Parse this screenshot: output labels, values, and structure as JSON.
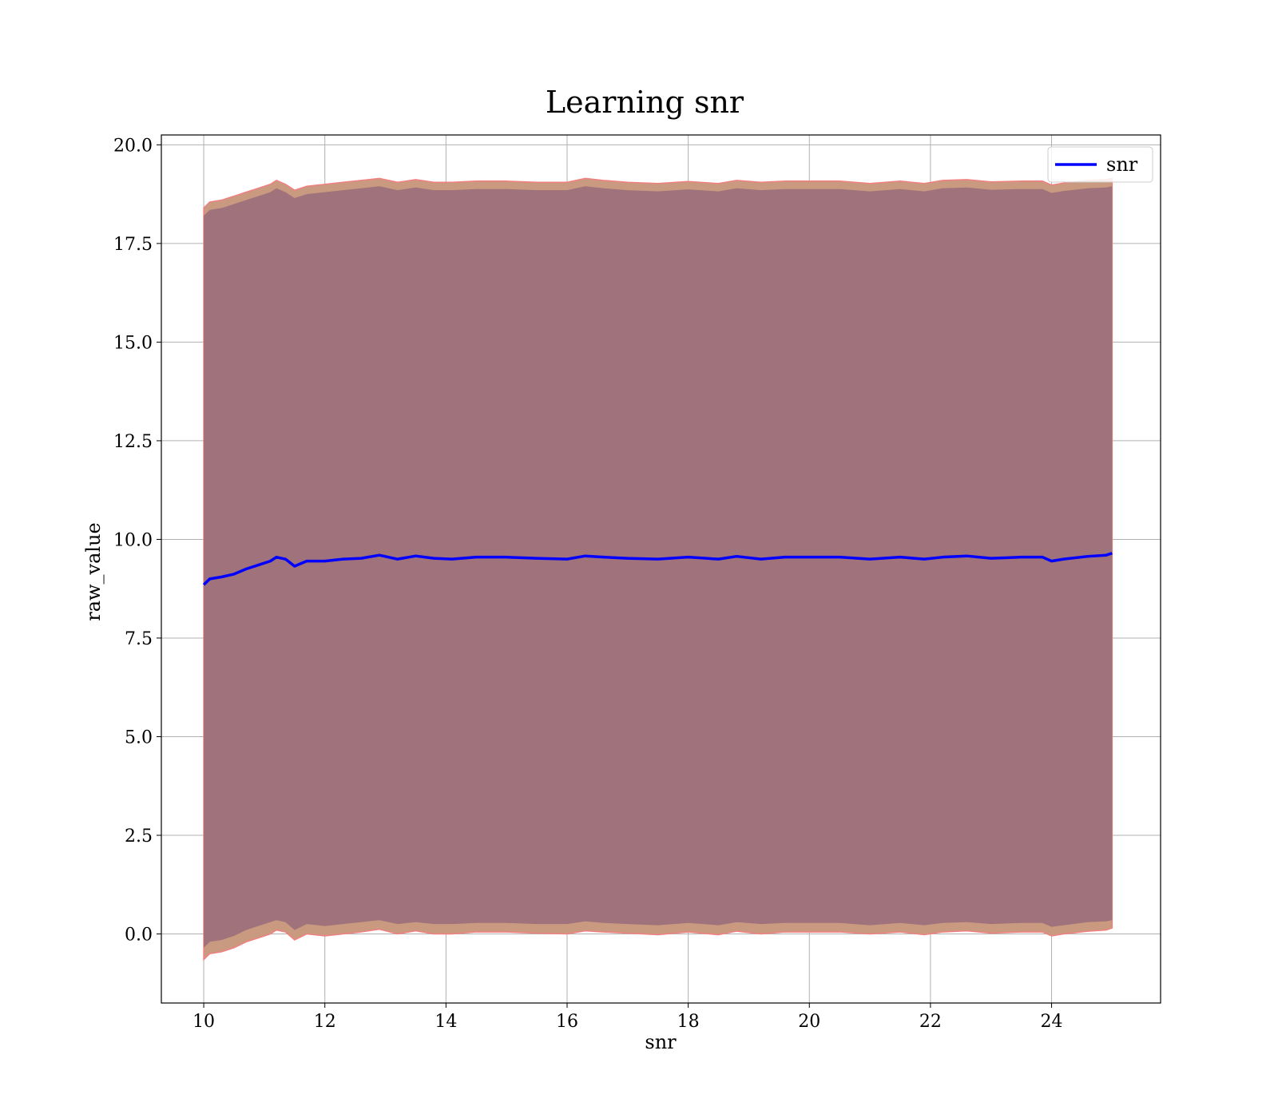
{
  "chart_data": {
    "type": "line",
    "title": "Learning snr",
    "xlabel": "snr",
    "ylabel": "raw_value",
    "xlim": [
      9.3,
      25.8
    ],
    "ylim": [
      -1.75,
      20.25
    ],
    "xticks": [
      10,
      12,
      14,
      16,
      18,
      20,
      22,
      24
    ],
    "yticks": [
      0.0,
      2.5,
      5.0,
      7.5,
      10.0,
      12.5,
      15.0,
      17.5,
      20.0
    ],
    "grid": true,
    "legend_position": "top-right",
    "colors": {
      "line": "#0000ff",
      "band_inner": "#a0727b",
      "band_outer": "#c99a80",
      "band_edge": "#f08080",
      "grid": "#b0b0b0"
    },
    "series": [
      {
        "name": "snr",
        "x": [
          10.0,
          10.1,
          10.3,
          10.5,
          10.7,
          10.9,
          11.1,
          11.2,
          11.35,
          11.5,
          11.7,
          12.0,
          12.3,
          12.6,
          12.9,
          13.2,
          13.5,
          13.8,
          14.1,
          14.5,
          15.0,
          15.5,
          16.0,
          16.3,
          16.6,
          17.0,
          17.5,
          18.0,
          18.5,
          18.8,
          19.2,
          19.6,
          20.0,
          20.5,
          21.0,
          21.5,
          21.9,
          22.2,
          22.6,
          23.0,
          23.5,
          23.85,
          24.0,
          24.2,
          24.6,
          24.9,
          25.0
        ],
        "y": [
          8.85,
          9.0,
          9.05,
          9.12,
          9.25,
          9.35,
          9.45,
          9.55,
          9.5,
          9.32,
          9.45,
          9.45,
          9.5,
          9.52,
          9.6,
          9.5,
          9.58,
          9.52,
          9.5,
          9.55,
          9.55,
          9.52,
          9.5,
          9.58,
          9.55,
          9.52,
          9.5,
          9.55,
          9.5,
          9.57,
          9.5,
          9.55,
          9.55,
          9.55,
          9.5,
          9.55,
          9.5,
          9.55,
          9.58,
          9.52,
          9.55,
          9.55,
          9.45,
          9.5,
          9.57,
          9.6,
          9.65
        ]
      }
    ],
    "band_outer": {
      "upper": [
        18.4,
        18.55,
        18.6,
        18.7,
        18.8,
        18.9,
        19.0,
        19.1,
        19.0,
        18.85,
        18.95,
        19.0,
        19.05,
        19.1,
        19.15,
        19.05,
        19.12,
        19.05,
        19.05,
        19.08,
        19.08,
        19.05,
        19.05,
        19.15,
        19.1,
        19.05,
        19.02,
        19.07,
        19.02,
        19.1,
        19.05,
        19.08,
        19.08,
        19.08,
        19.02,
        19.08,
        19.02,
        19.1,
        19.12,
        19.06,
        19.08,
        19.08,
        18.98,
        19.03,
        19.1,
        19.12,
        19.15
      ],
      "lower": [
        -0.65,
        -0.5,
        -0.45,
        -0.35,
        -0.2,
        -0.1,
        0.0,
        0.1,
        0.05,
        -0.15,
        0.0,
        -0.05,
        0.0,
        0.05,
        0.12,
        0.0,
        0.08,
        0.0,
        0.0,
        0.05,
        0.05,
        0.02,
        0.0,
        0.08,
        0.05,
        0.02,
        -0.02,
        0.05,
        -0.02,
        0.07,
        0.0,
        0.05,
        0.05,
        0.05,
        0.0,
        0.05,
        -0.02,
        0.05,
        0.08,
        0.02,
        0.05,
        0.05,
        -0.05,
        0.0,
        0.07,
        0.1,
        0.15
      ]
    },
    "band_inner": {
      "upper": [
        18.2,
        18.35,
        18.4,
        18.5,
        18.6,
        18.7,
        18.8,
        18.9,
        18.8,
        18.65,
        18.75,
        18.8,
        18.85,
        18.9,
        18.95,
        18.85,
        18.92,
        18.85,
        18.85,
        18.88,
        18.88,
        18.85,
        18.85,
        18.95,
        18.9,
        18.85,
        18.82,
        18.87,
        18.82,
        18.9,
        18.85,
        18.88,
        18.88,
        18.88,
        18.82,
        18.88,
        18.82,
        18.9,
        18.92,
        18.86,
        18.88,
        18.88,
        18.78,
        18.83,
        18.9,
        18.92,
        18.95
      ],
      "lower": [
        -0.35,
        -0.2,
        -0.15,
        -0.05,
        0.1,
        0.2,
        0.3,
        0.35,
        0.3,
        0.1,
        0.25,
        0.2,
        0.25,
        0.3,
        0.35,
        0.25,
        0.3,
        0.25,
        0.25,
        0.28,
        0.28,
        0.25,
        0.25,
        0.32,
        0.28,
        0.25,
        0.22,
        0.28,
        0.22,
        0.3,
        0.25,
        0.28,
        0.28,
        0.28,
        0.22,
        0.28,
        0.22,
        0.28,
        0.3,
        0.25,
        0.28,
        0.28,
        0.18,
        0.22,
        0.3,
        0.32,
        0.35
      ]
    }
  }
}
